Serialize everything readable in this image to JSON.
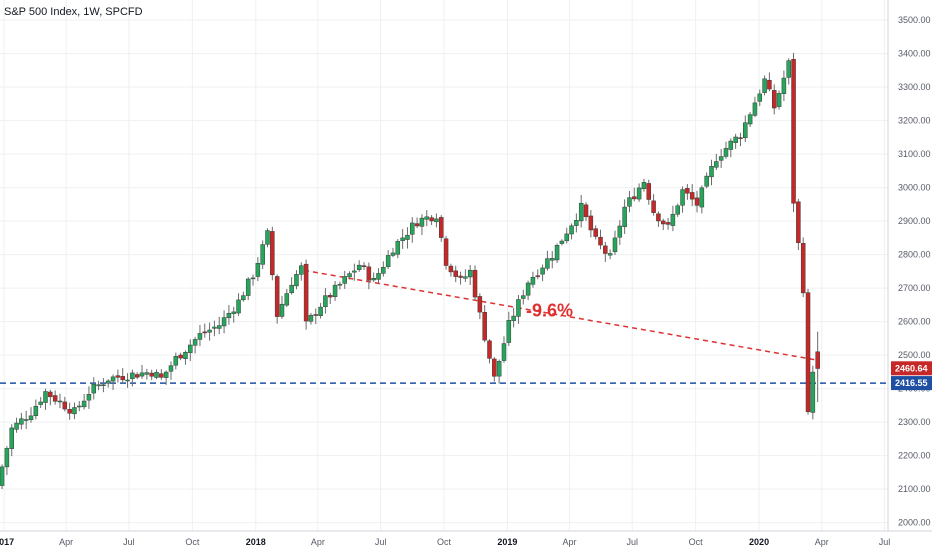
{
  "chart_data": {
    "type": "candlestick",
    "title": "S&P 500 Index, 1W, SPCFD",
    "y_axis": {
      "position": "right",
      "range": [
        1975,
        3560
      ],
      "ticks": [
        2000,
        2100,
        2200,
        2300,
        2400,
        2500,
        2600,
        2700,
        2800,
        2900,
        3000,
        3100,
        3200,
        3300,
        3400,
        3500
      ],
      "tick_labels": [
        "2000.00",
        "2100.00",
        "2200.00",
        "2300.00",
        "2400.00",
        "2500.00",
        "2600.00",
        "2700.00",
        "2800.00",
        "2900.00",
        "3000.00",
        "3100.00",
        "3200.00",
        "3300.00",
        "3400.00",
        "3500.00"
      ]
    },
    "x_axis": {
      "range": [
        "2016-12-26",
        "2020-07-06"
      ],
      "ticks": [
        {
          "date": "2017-01-01",
          "label": "2017",
          "bold": true
        },
        {
          "date": "2017-04-01",
          "label": "Apr",
          "bold": false
        },
        {
          "date": "2017-07-01",
          "label": "Jul",
          "bold": false
        },
        {
          "date": "2017-10-01",
          "label": "Oct",
          "bold": false
        },
        {
          "date": "2018-01-01",
          "label": "2018",
          "bold": true
        },
        {
          "date": "2018-04-01",
          "label": "Apr",
          "bold": false
        },
        {
          "date": "2018-07-01",
          "label": "Jul",
          "bold": false
        },
        {
          "date": "2018-10-01",
          "label": "Oct",
          "bold": false
        },
        {
          "date": "2019-01-01",
          "label": "2019",
          "bold": true
        },
        {
          "date": "2019-04-01",
          "label": "Apr",
          "bold": false
        },
        {
          "date": "2019-07-01",
          "label": "Jul",
          "bold": false
        },
        {
          "date": "2019-10-01",
          "label": "Oct",
          "bold": false
        },
        {
          "date": "2020-01-01",
          "label": "2020",
          "bold": true
        },
        {
          "date": "2020-04-01",
          "label": "Apr",
          "bold": false
        },
        {
          "date": "2020-07-01",
          "label": "Jul",
          "bold": false
        }
      ]
    },
    "grid": true,
    "colors": {
      "up": "#26a65b",
      "down": "#c62828",
      "annotation": "#e03131",
      "support": "#1e4fa3"
    },
    "anchors": [
      [
        "2016-12-26",
        2110
      ],
      [
        "2017-01-16",
        2280
      ],
      [
        "2017-02-13",
        2330
      ],
      [
        "2017-03-06",
        2390
      ],
      [
        "2017-03-27",
        2360
      ],
      [
        "2017-04-17",
        2330
      ],
      [
        "2017-05-08",
        2390
      ],
      [
        "2017-06-05",
        2430
      ],
      [
        "2017-07-03",
        2440
      ],
      [
        "2017-08-07",
        2450
      ],
      [
        "2017-08-21",
        2430
      ],
      [
        "2017-09-11",
        2490
      ],
      [
        "2017-10-16",
        2560
      ],
      [
        "2017-11-13",
        2590
      ],
      [
        "2017-12-11",
        2660
      ],
      [
        "2018-01-01",
        2740
      ],
      [
        "2018-01-22",
        2860
      ],
      [
        "2018-02-05",
        2620
      ],
      [
        "2018-02-26",
        2720
      ],
      [
        "2018-03-12",
        2760
      ],
      [
        "2018-03-19",
        2590
      ],
      [
        "2018-04-09",
        2650
      ],
      [
        "2018-05-07",
        2710
      ],
      [
        "2018-06-04",
        2770
      ],
      [
        "2018-06-25",
        2720
      ],
      [
        "2018-07-23",
        2820
      ],
      [
        "2018-08-27",
        2900
      ],
      [
        "2018-09-24",
        2920
      ],
      [
        "2018-10-08",
        2780
      ],
      [
        "2018-10-29",
        2720
      ],
      [
        "2018-11-12",
        2750
      ],
      [
        "2018-11-26",
        2620
      ],
      [
        "2018-12-17",
        2430
      ],
      [
        "2019-01-07",
        2590
      ],
      [
        "2019-02-04",
        2720
      ],
      [
        "2019-03-11",
        2800
      ],
      [
        "2019-04-22",
        2940
      ],
      [
        "2019-05-13",
        2840
      ],
      [
        "2019-06-03",
        2790
      ],
      [
        "2019-06-24",
        2940
      ],
      [
        "2019-07-22",
        3020
      ],
      [
        "2019-08-05",
        2930
      ],
      [
        "2019-08-26",
        2880
      ],
      [
        "2019-09-16",
        2990
      ],
      [
        "2019-10-07",
        2950
      ],
      [
        "2019-11-04",
        3090
      ],
      [
        "2019-12-09",
        3160
      ],
      [
        "2020-01-13",
        3320
      ],
      [
        "2020-01-27",
        3240
      ],
      [
        "2020-02-17",
        3370
      ],
      [
        "2020-02-24",
        2960
      ],
      [
        "2020-03-09",
        2700
      ],
      [
        "2020-03-16",
        2320
      ],
      [
        "2020-03-23",
        2460
      ]
    ],
    "last_candle": {
      "open": 2510,
      "close": 2460,
      "high": 2570,
      "low": 2360
    },
    "price_labels": [
      {
        "value": 2460.64,
        "label": "2460.64",
        "color": "#c62828"
      },
      {
        "value": 2416.55,
        "label": "2416.55",
        "color": "#1e4fa3"
      }
    ],
    "support_line": {
      "value": 2416.55
    },
    "trend_line": {
      "from": [
        "2018-03-12",
        2753
      ],
      "to": [
        "2020-03-23",
        2486
      ],
      "label": "-9.6%"
    },
    "annotation_position": [
      "2019-01-28",
      2615
    ]
  }
}
